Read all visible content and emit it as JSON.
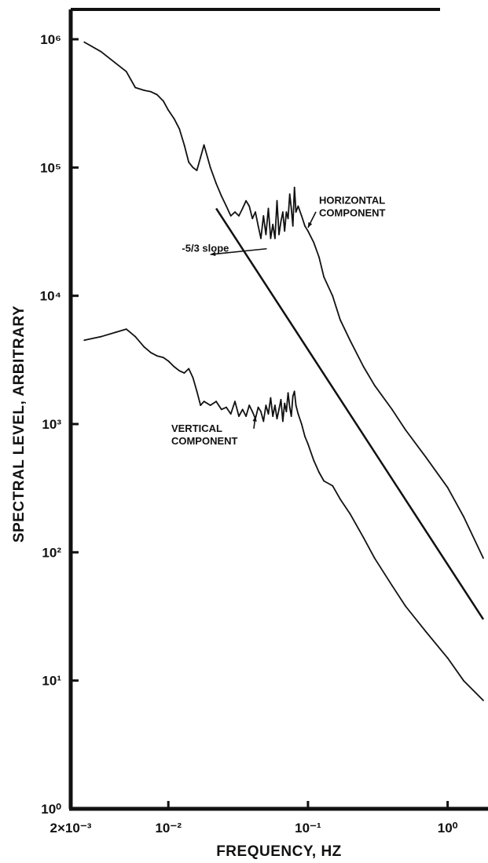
{
  "chart_data": {
    "type": "line",
    "title": "",
    "xlabel": "FREQUENCY, HZ",
    "ylabel": "SPECTRAL LEVEL, ARBITRARY",
    "x_scale": "log",
    "y_scale": "log",
    "xlim": [
      0.002,
      1.8
    ],
    "ylim": [
      1,
      1000000
    ],
    "x_ticks": [
      {
        "value": 0.002,
        "label": "2×10⁻³"
      },
      {
        "value": 0.01,
        "label": "10⁻²"
      },
      {
        "value": 0.1,
        "label": "10⁻¹"
      },
      {
        "value": 1,
        "label": "10⁰"
      }
    ],
    "y_ticks": [
      {
        "value": 1,
        "label": "10⁰"
      },
      {
        "value": 10,
        "label": "10¹"
      },
      {
        "value": 100,
        "label": "10²"
      },
      {
        "value": 1000,
        "label": "10³"
      },
      {
        "value": 10000,
        "label": "10⁴"
      },
      {
        "value": 100000,
        "label": "10⁵"
      },
      {
        "value": 1000000,
        "label": "10⁶"
      }
    ],
    "grid": false,
    "legend": "none",
    "series": [
      {
        "name": "HORIZONTAL COMPONENT",
        "color": "#111111",
        "x": [
          0.0025,
          0.0033,
          0.0042,
          0.005,
          0.0058,
          0.0067,
          0.0075,
          0.0083,
          0.0092,
          0.01,
          0.011,
          0.012,
          0.013,
          0.014,
          0.015,
          0.016,
          0.017,
          0.018,
          0.02,
          0.022,
          0.024,
          0.026,
          0.028,
          0.03,
          0.032,
          0.034,
          0.036,
          0.038,
          0.04,
          0.042,
          0.044,
          0.046,
          0.048,
          0.05,
          0.052,
          0.054,
          0.056,
          0.058,
          0.06,
          0.062,
          0.064,
          0.066,
          0.068,
          0.07,
          0.072,
          0.074,
          0.076,
          0.078,
          0.08,
          0.082,
          0.085,
          0.09,
          0.095,
          0.1,
          0.11,
          0.12,
          0.13,
          0.15,
          0.17,
          0.2,
          0.25,
          0.3,
          0.4,
          0.5,
          0.7,
          1.0,
          1.3,
          1.8
        ],
        "y": [
          950000,
          800000,
          650000,
          560000,
          420000,
          400000,
          390000,
          370000,
          330000,
          280000,
          240000,
          200000,
          150000,
          110000,
          100000,
          95000,
          120000,
          150000,
          100000,
          75000,
          60000,
          50000,
          42000,
          45000,
          42000,
          48000,
          55000,
          50000,
          40000,
          45000,
          35000,
          28000,
          42000,
          30000,
          48000,
          28000,
          36000,
          28000,
          55000,
          30000,
          38000,
          45000,
          32000,
          45000,
          40000,
          62000,
          48000,
          35000,
          70000,
          45000,
          50000,
          42000,
          35000,
          32000,
          26000,
          20000,
          14000,
          10000,
          6500,
          4500,
          2800,
          2000,
          1300,
          900,
          550,
          320,
          190,
          90
        ]
      },
      {
        "name": "VERTICAL COMPONENT",
        "color": "#111111",
        "x": [
          0.0025,
          0.0033,
          0.0042,
          0.005,
          0.0058,
          0.0067,
          0.0075,
          0.0083,
          0.0092,
          0.01,
          0.011,
          0.012,
          0.013,
          0.014,
          0.015,
          0.016,
          0.017,
          0.018,
          0.02,
          0.022,
          0.024,
          0.026,
          0.028,
          0.03,
          0.032,
          0.034,
          0.036,
          0.038,
          0.04,
          0.042,
          0.044,
          0.046,
          0.048,
          0.05,
          0.052,
          0.054,
          0.056,
          0.058,
          0.06,
          0.062,
          0.064,
          0.066,
          0.068,
          0.07,
          0.072,
          0.074,
          0.076,
          0.078,
          0.08,
          0.082,
          0.085,
          0.09,
          0.095,
          0.1,
          0.11,
          0.12,
          0.13,
          0.15,
          0.17,
          0.2,
          0.25,
          0.3,
          0.4,
          0.5,
          0.7,
          1.0,
          1.3,
          1.8
        ],
        "y": [
          4500,
          4800,
          5200,
          5500,
          4800,
          4000,
          3600,
          3400,
          3300,
          3100,
          2800,
          2600,
          2500,
          2700,
          2300,
          1800,
          1400,
          1500,
          1400,
          1500,
          1300,
          1350,
          1200,
          1500,
          1150,
          1300,
          1150,
          1400,
          1250,
          1100,
          1350,
          1250,
          1050,
          1400,
          1200,
          1600,
          1150,
          1400,
          1100,
          1300,
          1550,
          1050,
          1450,
          1250,
          1750,
          1350,
          1150,
          1650,
          1800,
          1400,
          1200,
          1000,
          800,
          700,
          520,
          420,
          360,
          330,
          260,
          200,
          130,
          90,
          55,
          38,
          24,
          15,
          10,
          7
        ]
      },
      {
        "name": "-5/3 slope",
        "color": "#111111",
        "x": [
          0.022,
          1.8
        ],
        "y": [
          48000,
          30
        ]
      }
    ],
    "annotations": [
      {
        "text_lines": [
          "HORIZONTAL",
          "COMPONENT"
        ],
        "x": 0.12,
        "y": 52000,
        "arrow_to": [
          0.1,
          34000
        ]
      },
      {
        "text_lines": [
          "-5/3 slope"
        ],
        "x": 0.0125,
        "y": 22000,
        "arrow_to": [
          0.02,
          21000
        ]
      },
      {
        "text_lines": [
          "VERTICAL",
          "COMPONENT"
        ],
        "x": 0.0105,
        "y": 870,
        "arrow_to": [
          0.042,
          1150
        ]
      }
    ]
  }
}
